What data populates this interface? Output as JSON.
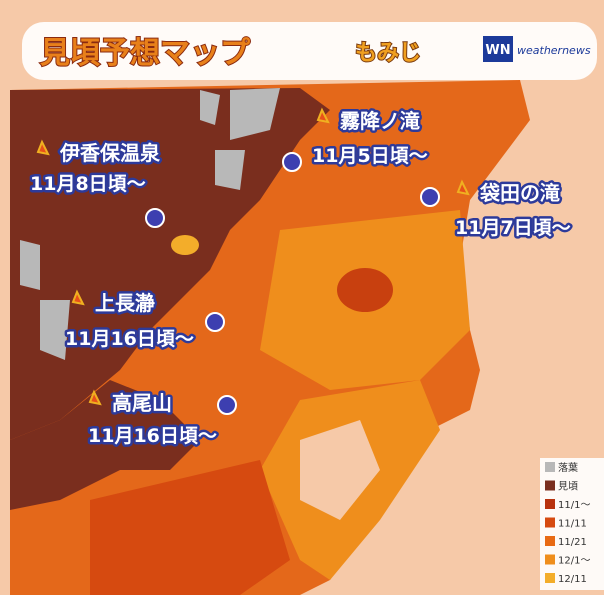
{
  "header": {
    "title": "見頃予想マップ",
    "subtitle": "もみじ",
    "brand_mark": "WN",
    "brand": "weathernews"
  },
  "spots": [
    {
      "name": "伊香保温泉",
      "date": "11月8日頃～"
    },
    {
      "name": "霧降ノ滝",
      "date": "11月5日頃～"
    },
    {
      "name": "袋田の滝",
      "date": "11月7日頃～"
    },
    {
      "name": "上長瀞",
      "date": "11月16日頃～"
    },
    {
      "name": "高尾山",
      "date": "11月16日頃～"
    }
  ],
  "legend": [
    {
      "label": "落葉",
      "color": "#b8b8b8"
    },
    {
      "label": "見頃",
      "color": "#7a2e1e"
    },
    {
      "label": "11/1～",
      "color": "#b8320e"
    },
    {
      "label": "11/11",
      "color": "#d64a10"
    },
    {
      "label": "11/21",
      "color": "#e86a14"
    },
    {
      "label": "12/1～",
      "color": "#ef8e1c"
    },
    {
      "label": "12/11",
      "color": "#f3ad2a"
    }
  ]
}
